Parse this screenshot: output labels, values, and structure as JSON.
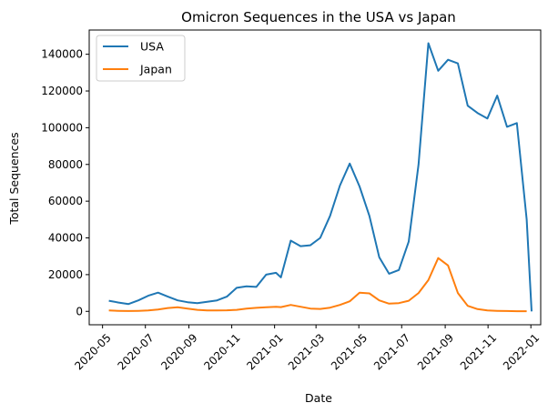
{
  "chart_data": {
    "type": "line",
    "title": "Omicron Sequences in the USA vs Japan",
    "xlabel": "Date",
    "ylabel": "Total Sequences",
    "xlim": [
      "2020-04-12",
      "2022-01-15"
    ],
    "ylim": [
      -7300,
      153200
    ],
    "x_ticks": [
      "2020-05",
      "2020-07",
      "2020-09",
      "2020-11",
      "2021-01",
      "2021-03",
      "2021-05",
      "2021-07",
      "2021-09",
      "2021-11",
      "2022-01"
    ],
    "y_ticks": [
      0,
      20000,
      40000,
      60000,
      80000,
      100000,
      120000,
      140000
    ],
    "grid": false,
    "legend_position": "upper left",
    "series": [
      {
        "name": "USA",
        "color": "#1f77b4",
        "x": [
          "2020-05-10",
          "2020-05-24",
          "2020-06-07",
          "2020-06-21",
          "2020-07-05",
          "2020-07-19",
          "2020-08-02",
          "2020-08-16",
          "2020-08-30",
          "2020-09-13",
          "2020-09-27",
          "2020-10-11",
          "2020-10-25",
          "2020-11-08",
          "2020-11-22",
          "2020-12-06",
          "2020-12-20",
          "2021-01-03",
          "2021-01-10",
          "2021-01-24",
          "2021-02-07",
          "2021-02-21",
          "2021-03-07",
          "2021-03-21",
          "2021-04-04",
          "2021-04-18",
          "2021-05-02",
          "2021-05-16",
          "2021-05-30",
          "2021-06-13",
          "2021-06-27",
          "2021-07-11",
          "2021-07-25",
          "2021-08-08",
          "2021-08-22",
          "2021-09-05",
          "2021-09-19",
          "2021-10-03",
          "2021-10-17",
          "2021-10-31",
          "2021-11-14",
          "2021-11-28",
          "2021-12-12",
          "2021-12-26",
          "2022-01-02"
        ],
        "values": [
          5800,
          4800,
          4000,
          6000,
          8500,
          10200,
          8000,
          6000,
          5000,
          4500,
          5200,
          6000,
          8000,
          12800,
          13600,
          13300,
          20000,
          21000,
          18500,
          38500,
          35500,
          36000,
          40000,
          52000,
          68500,
          80500,
          68000,
          52000,
          29500,
          20500,
          22500,
          38000,
          80000,
          146000,
          131000,
          137000,
          135000,
          112000,
          108000,
          105000,
          117500,
          100500,
          102500,
          50000,
          0
        ]
      },
      {
        "name": "Japan",
        "color": "#ff7f0e",
        "x": [
          "2020-05-10",
          "2020-05-24",
          "2020-06-07",
          "2020-06-21",
          "2020-07-05",
          "2020-07-19",
          "2020-08-02",
          "2020-08-16",
          "2020-08-30",
          "2020-09-13",
          "2020-09-27",
          "2020-10-11",
          "2020-10-25",
          "2020-11-08",
          "2020-11-22",
          "2020-12-06",
          "2020-12-20",
          "2021-01-03",
          "2021-01-10",
          "2021-01-24",
          "2021-02-07",
          "2021-02-21",
          "2021-03-07",
          "2021-03-21",
          "2021-04-04",
          "2021-04-18",
          "2021-05-02",
          "2021-05-16",
          "2021-05-30",
          "2021-06-13",
          "2021-06-27",
          "2021-07-11",
          "2021-07-25",
          "2021-08-08",
          "2021-08-22",
          "2021-09-05",
          "2021-09-19",
          "2021-10-03",
          "2021-10-17",
          "2021-10-31",
          "2021-11-14",
          "2021-11-28",
          "2021-12-12",
          "2021-12-26",
          "2022-01-02"
        ],
        "values": [
          500,
          300,
          200,
          300,
          500,
          1000,
          1800,
          2200,
          1500,
          800,
          500,
          500,
          600,
          800,
          1500,
          1900,
          2200,
          2500,
          2300,
          3500,
          2500,
          1500,
          1300,
          2000,
          3500,
          5500,
          10200,
          9800,
          6000,
          4200,
          4500,
          5800,
          10000,
          17000,
          29000,
          25000,
          10000,
          3000,
          1200,
          500,
          300,
          200,
          100,
          100,
          null
        ]
      }
    ]
  }
}
